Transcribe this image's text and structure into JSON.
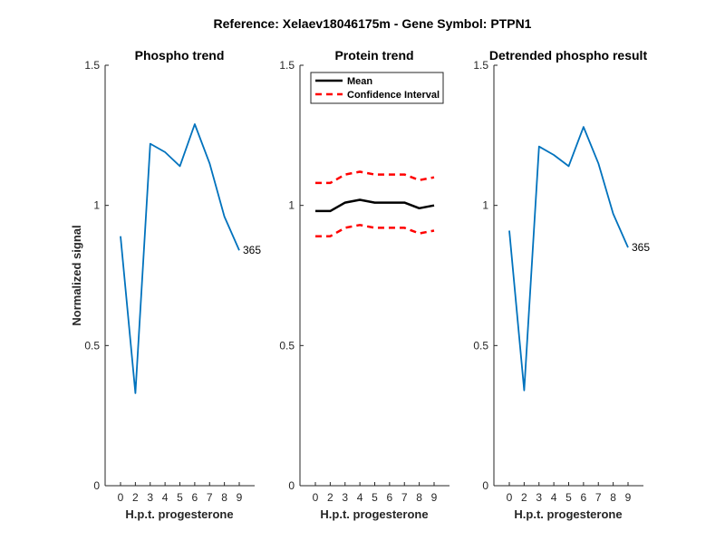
{
  "figure_title": "Reference:  Xelaev18046175m - Gene Symbol:  PTPN1",
  "chart_data": [
    {
      "type": "line",
      "title": "Phospho trend",
      "xlabel": "H.p.t. progesterone",
      "ylabel": "Normalized signal",
      "x_ticks": [
        "0",
        "2",
        "3",
        "4",
        "5",
        "6",
        "7",
        "8",
        "9"
      ],
      "yticks": [
        "0",
        "0.5",
        "1",
        "1.5"
      ],
      "ylim": [
        0,
        1.5
      ],
      "series": [
        {
          "values": [
            0.89,
            0.33,
            1.22,
            1.19,
            1.14,
            1.29,
            1.15,
            0.96,
            0.84
          ],
          "color": "#0072bd",
          "style": "solid"
        }
      ],
      "annotation": {
        "text": "365",
        "at_index": 8
      }
    },
    {
      "type": "line",
      "title": "Protein trend",
      "xlabel": "H.p.t. progesterone",
      "x_ticks": [
        "0",
        "2",
        "3",
        "4",
        "5",
        "6",
        "7",
        "8",
        "9"
      ],
      "yticks": [
        "0",
        "0.5",
        "1",
        "1.5"
      ],
      "ylim": [
        0,
        1.5
      ],
      "legend_position": "top-left",
      "series": [
        {
          "name": "Mean",
          "values": [
            0.98,
            0.98,
            1.01,
            1.02,
            1.01,
            1.01,
            1.01,
            0.99,
            1.0
          ],
          "color": "#000000",
          "style": "solid"
        },
        {
          "name": "Confidence Interval",
          "values": [
            1.08,
            1.08,
            1.11,
            1.12,
            1.11,
            1.11,
            1.11,
            1.09,
            1.1
          ],
          "color": "#ff0000",
          "style": "dashed"
        },
        {
          "values": [
            0.89,
            0.89,
            0.92,
            0.93,
            0.92,
            0.92,
            0.92,
            0.9,
            0.91
          ],
          "color": "#ff0000",
          "style": "dashed"
        }
      ]
    },
    {
      "type": "line",
      "title": "Detrended phospho result",
      "xlabel": "H.p.t. progesterone",
      "x_ticks": [
        "0",
        "2",
        "3",
        "4",
        "5",
        "6",
        "7",
        "8",
        "9"
      ],
      "yticks": [
        "0",
        "0.5",
        "1",
        "1.5"
      ],
      "ylim": [
        0,
        1.5
      ],
      "series": [
        {
          "values": [
            0.91,
            0.34,
            1.21,
            1.18,
            1.14,
            1.28,
            1.15,
            0.97,
            0.85
          ],
          "color": "#0072bd",
          "style": "solid"
        }
      ],
      "annotation": {
        "text": "365",
        "at_index": 8
      }
    }
  ]
}
